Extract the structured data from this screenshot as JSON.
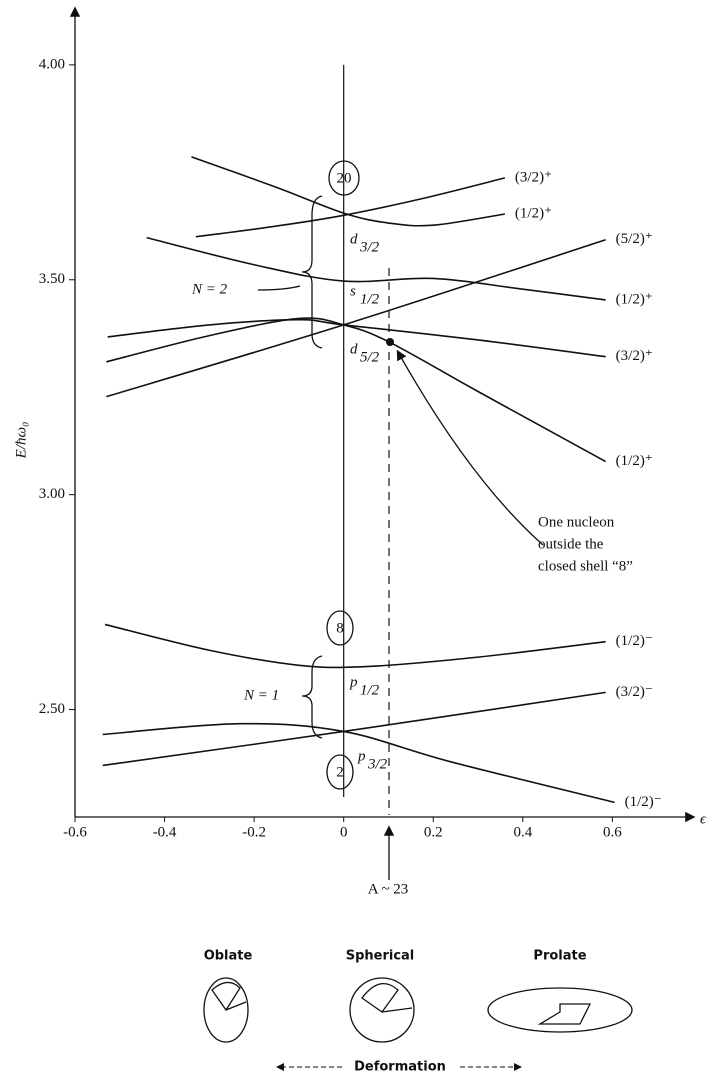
{
  "chart_data": {
    "type": "line",
    "y_label": "E/ħω₀",
    "x_label": "ϵ",
    "color": "#111111",
    "xlim": [
      -0.6,
      0.78
    ],
    "ylim": [
      2.25,
      4.13
    ],
    "xticks": [
      -0.6,
      -0.4,
      -0.2,
      0,
      0.2,
      0.4,
      0.6
    ],
    "yticks": [
      {
        "value": 2.5,
        "label": "2.50"
      },
      {
        "value": 3,
        "label": "3.00"
      },
      {
        "value": 3.5,
        "label": "3.50"
      },
      {
        "value": 4,
        "label": "4.00"
      }
    ],
    "series": [
      {
        "name": "(3/2)⁺",
        "x": [
          -0.33,
          -0.15,
          0,
          0.18,
          0.36
        ],
        "y": [
          3.6,
          3.625,
          3.65,
          3.69,
          3.737
        ]
      },
      {
        "name": "(1/2)⁺",
        "x": [
          -0.34,
          -0.15,
          0,
          0.1,
          0.2,
          0.36
        ],
        "y": [
          3.786,
          3.715,
          3.655,
          3.632,
          3.627,
          3.653
        ]
      },
      {
        "name": "(5/2)⁺",
        "x": [
          -0.53,
          0,
          0.585
        ],
        "y": [
          3.228,
          3.395,
          3.593
        ]
      },
      {
        "name": "(1/2)⁺",
        "x": [
          -0.44,
          -0.2,
          0,
          0.2,
          0.4,
          0.585
        ],
        "y": [
          3.598,
          3.535,
          3.497,
          3.503,
          3.478,
          3.453
        ]
      },
      {
        "name": "(3/2)⁺",
        "x": [
          -0.527,
          -0.3,
          -0.1,
          0,
          0.3,
          0.585
        ],
        "y": [
          3.367,
          3.395,
          3.407,
          3.395,
          3.36,
          3.321
        ]
      },
      {
        "name": "(1/2)⁺",
        "x": [
          -0.53,
          -0.3,
          -0.1,
          0,
          0.1,
          0.3,
          0.585
        ],
        "y": [
          3.309,
          3.37,
          3.41,
          3.395,
          3.356,
          3.24,
          3.077
        ]
      },
      {
        "name": "(1/2)⁻",
        "x": [
          -0.533,
          -0.3,
          -0.1,
          0.05,
          0.3,
          0.585
        ],
        "y": [
          2.698,
          2.638,
          2.603,
          2.6,
          2.622,
          2.658
        ]
      },
      {
        "name": "(3/2)⁻",
        "x": [
          -0.538,
          0,
          0.585
        ],
        "y": [
          2.37,
          2.449,
          2.54
        ]
      },
      {
        "name": "(1/2)⁻",
        "x": [
          -0.538,
          -0.232,
          0,
          0.237,
          0.605
        ],
        "y": [
          2.442,
          2.467,
          2.449,
          2.379,
          2.284
        ]
      }
    ],
    "shells": [
      "20",
      "8",
      "2"
    ],
    "groups": [
      "N = 2",
      "N = 1"
    ],
    "orbitals": [
      {
        "letter": "d",
        "index": "3/2"
      },
      {
        "letter": "s",
        "index": "1/2"
      },
      {
        "letter": "d",
        "index": "5/2"
      },
      {
        "letter": "p",
        "index": "1/2"
      },
      {
        "letter": "p",
        "index": "3/2"
      }
    ],
    "note": [
      "One nucleon",
      "outside the",
      "closed shell “8”"
    ],
    "marker_label": "A ~ 23",
    "shapes": [
      "Oblate",
      "Spherical",
      "Prolate"
    ],
    "deformation": "Deformation"
  }
}
